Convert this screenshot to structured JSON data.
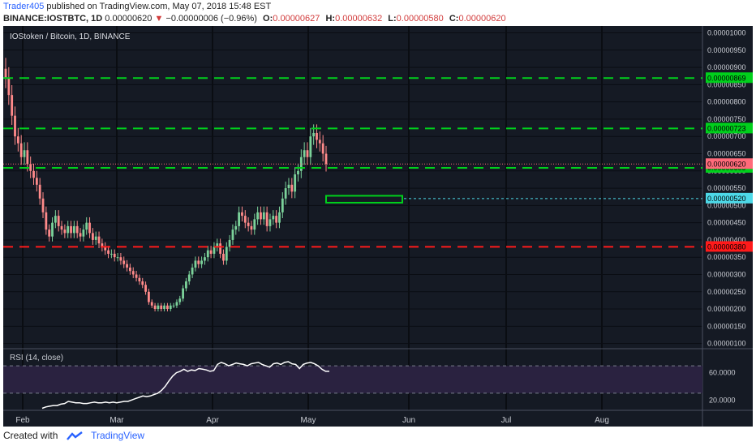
{
  "header": {
    "author": "Trader405",
    "published_text": "published on TradingView.com, May 07, 2018 15:48 EST",
    "symbol_line": "BINANCE:IOSTBTC, 1D",
    "last_price": "0.00000620",
    "change_arrow": "▼",
    "change": "−0.00000006 (−0.96%)",
    "o_label": "O:",
    "o_value": "0.00000627",
    "h_label": "H:",
    "h_value": "0.00000632",
    "l_label": "L:",
    "l_value": "0.00000580",
    "c_label": "C:",
    "c_value": "0.00000620"
  },
  "footer": {
    "created_with": "Created with",
    "brand": "TradingView"
  },
  "colors": {
    "background": "#151a24",
    "up_candle": "#7bd29a",
    "down_candle": "#ff8a8a",
    "green_line": "#00d01c",
    "red_line": "#ff1a1a",
    "rsi_line": "#ffffff",
    "rsi_band": "#2a2240",
    "cyan": "#4dd9e8",
    "price_line": "#ff6b7a"
  },
  "chart_data": {
    "type": "candlestick",
    "title": "IOStoken / Bitcoin, 1D, BINANCE",
    "y_ticks": [
      "0.00001000",
      "0.00000950",
      "0.00000900",
      "0.00000850",
      "0.00000800",
      "0.00000750",
      "0.00000700",
      "0.00000650",
      "0.00000600",
      "0.00000550",
      "0.00000500",
      "0.00000450",
      "0.00000400",
      "0.00000350",
      "0.00000300",
      "0.00000250",
      "0.00000200",
      "0.00000150",
      "0.00000100"
    ],
    "ylim": [
      8.5e-07,
      1.02e-05
    ],
    "x_ticks": [
      "Feb",
      "Mar",
      "Apr",
      "May",
      "Jun",
      "Jul",
      "Aug"
    ],
    "levels": [
      {
        "label": "0.00000869",
        "value": 8.69e-06,
        "style": "dashed",
        "color": "#00d01c"
      },
      {
        "label": "0.00000723",
        "value": 7.23e-06,
        "style": "dashed",
        "color": "#00d01c"
      },
      {
        "label": "0.00000609",
        "value": 6.09e-06,
        "style": "dashed",
        "color": "#00d01c"
      },
      {
        "label": "0.00000520",
        "value": 5.2e-06,
        "style": "dotted",
        "color": "#4dd9e8"
      },
      {
        "label": "0.00000380",
        "value": 3.8e-06,
        "style": "dashed",
        "color": "#ff1a1a"
      }
    ],
    "current_price": {
      "label": "0.00000620",
      "value": 6.2e-06
    },
    "target_box": {
      "low": 5.08e-06,
      "high": 5.28e-06
    },
    "closes": [
      870,
      820,
      760,
      700,
      680,
      640,
      660,
      620,
      600,
      580,
      560,
      520,
      480,
      430,
      410,
      450,
      470,
      440,
      430,
      420,
      440,
      420,
      440,
      420,
      410,
      430,
      450,
      420,
      400,
      410,
      390,
      380,
      370,
      360,
      360,
      350,
      350,
      340,
      330,
      320,
      310,
      300,
      290,
      280,
      270,
      250,
      220,
      210,
      200,
      210,
      200,
      210,
      200,
      210,
      210,
      220,
      230,
      260,
      280,
      300,
      320,
      340,
      330,
      340,
      350,
      370,
      360,
      380,
      390,
      360,
      340,
      380,
      400,
      430,
      440,
      480,
      470,
      450,
      440,
      430,
      460,
      480,
      460,
      480,
      440,
      460,
      470,
      450,
      480,
      520,
      550,
      560,
      540,
      590,
      600,
      640,
      660,
      640,
      700,
      710,
      690,
      680,
      650,
      620
    ],
    "rsi": {
      "label": "RSI (14, close)",
      "ticks": [
        "60.0000",
        "20.0000"
      ],
      "ylim": [
        5,
        95
      ],
      "band": [
        30,
        70
      ],
      "values": [
        8,
        10,
        11,
        12,
        12,
        14,
        15,
        18,
        17,
        16,
        16,
        15,
        15,
        16,
        17,
        16,
        16,
        17,
        16,
        17,
        16,
        17,
        18,
        18,
        20,
        22,
        24,
        26,
        25,
        26,
        28,
        30,
        34,
        40,
        48,
        55,
        60,
        62,
        65,
        62,
        64,
        63,
        66,
        65,
        64,
        62,
        63,
        72,
        75,
        73,
        70,
        72,
        74,
        73,
        72,
        70,
        73,
        74,
        75,
        72,
        70,
        68,
        73,
        74,
        72,
        75,
        76,
        73,
        72,
        66,
        72,
        74,
        75,
        73,
        70,
        65,
        62,
        62
      ]
    }
  }
}
